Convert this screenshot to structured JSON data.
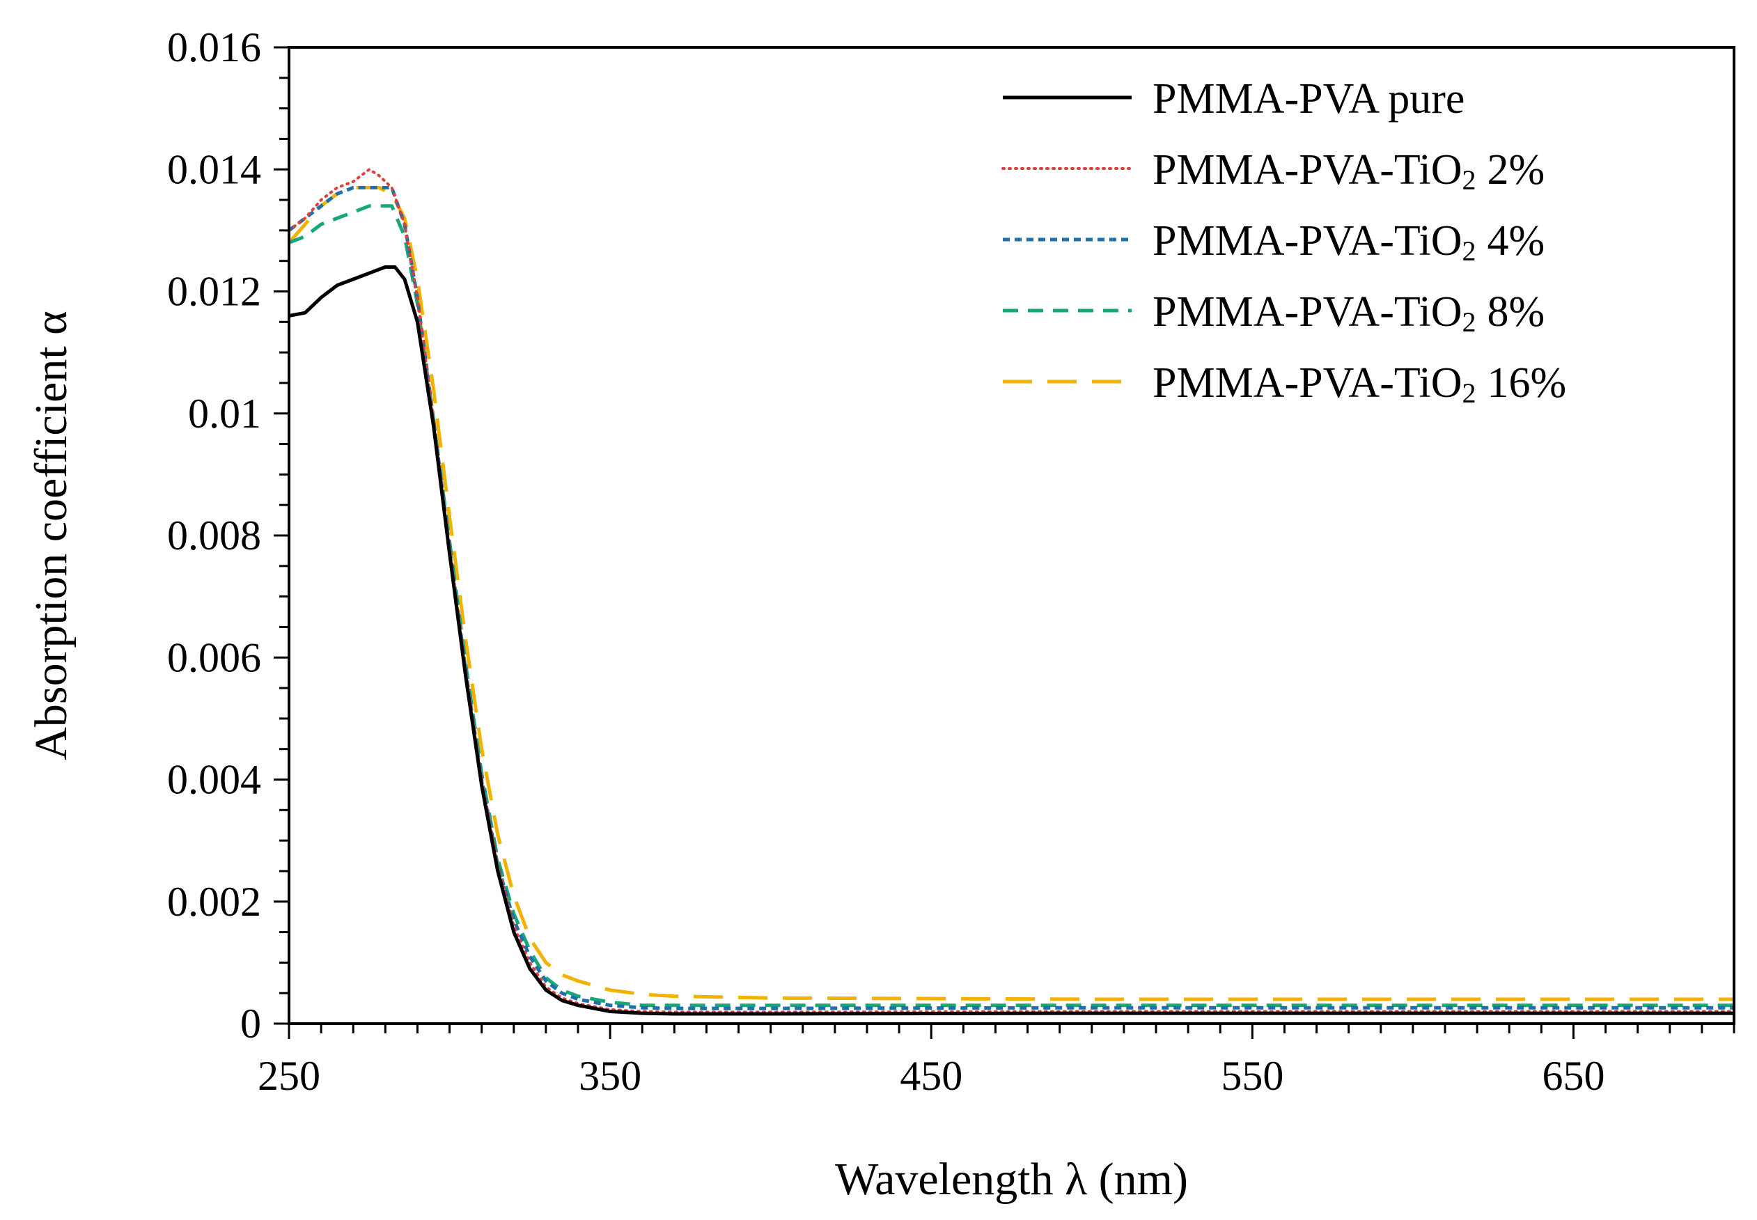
{
  "chart_data": {
    "type": "line",
    "title": "",
    "xlabel": "Wavelength λ (nm)",
    "ylabel": "Absorption coefficient α",
    "xlim": [
      250,
      700
    ],
    "ylim": [
      0,
      0.016
    ],
    "x_ticks": [
      250,
      350,
      450,
      550,
      650
    ],
    "x_tick_labels": [
      "250",
      "350",
      "450",
      "550",
      "650"
    ],
    "y_ticks": [
      0,
      0.002,
      0.004,
      0.006,
      0.008,
      0.01,
      0.012,
      0.014,
      0.016
    ],
    "y_tick_labels": [
      "0",
      "0.002",
      "0.004",
      "0.006",
      "0.008",
      "0.01",
      "0.012",
      "0.014",
      "0.016"
    ],
    "grid": false,
    "legend_position": "top-right",
    "series": [
      {
        "name": "PMMA-PVA pure",
        "legend_main": "PMMA-PVA pure",
        "legend_sub": "",
        "legend_tail": "",
        "color": "#000000",
        "dash": "solid",
        "x": [
          250,
          255,
          260,
          265,
          270,
          275,
          280,
          283,
          286,
          290,
          295,
          300,
          305,
          310,
          315,
          320,
          325,
          330,
          335,
          340,
          350,
          360,
          370,
          400,
          500,
          600,
          700
        ],
        "y": [
          0.0116,
          0.01165,
          0.0119,
          0.0121,
          0.0122,
          0.0123,
          0.0124,
          0.0124,
          0.0122,
          0.0115,
          0.0098,
          0.0077,
          0.0057,
          0.0039,
          0.0025,
          0.0015,
          0.0009,
          0.00055,
          0.00038,
          0.0003,
          0.0002,
          0.00017,
          0.00016,
          0.00016,
          0.00017,
          0.00017,
          0.00017
        ]
      },
      {
        "name": "PMMA-PVA-TiO2 2%",
        "legend_main": "PMMA-PVA-TiO",
        "legend_sub": "2",
        "legend_tail": "2%",
        "color": "#e0403c",
        "dash": "dotted",
        "x": [
          250,
          255,
          260,
          265,
          270,
          275,
          278,
          282,
          286,
          290,
          295,
          300,
          305,
          310,
          315,
          320,
          325,
          330,
          335,
          340,
          350,
          360,
          370,
          400,
          500,
          600,
          700
        ],
        "y": [
          0.013,
          0.0132,
          0.0135,
          0.0137,
          0.0138,
          0.014,
          0.0139,
          0.0137,
          0.0131,
          0.0119,
          0.0099,
          0.0078,
          0.0058,
          0.004,
          0.0026,
          0.0016,
          0.001,
          0.0006,
          0.00042,
          0.00033,
          0.00023,
          0.0002,
          0.00019,
          0.00019,
          0.0002,
          0.0002,
          0.0002
        ]
      },
      {
        "name": "PMMA-PVA-TiO2 4%",
        "legend_main": "PMMA-PVA-TiO",
        "legend_sub": "2",
        "legend_tail": "4%",
        "color": "#1f6fa8",
        "dash": "short-dash",
        "x": [
          250,
          255,
          260,
          265,
          270,
          275,
          278,
          282,
          286,
          290,
          295,
          300,
          305,
          310,
          315,
          320,
          325,
          330,
          335,
          340,
          350,
          360,
          370,
          400,
          500,
          600,
          700
        ],
        "y": [
          0.013,
          0.0132,
          0.0134,
          0.0136,
          0.0137,
          0.0137,
          0.0137,
          0.0137,
          0.0131,
          0.0119,
          0.0099,
          0.0078,
          0.0058,
          0.004,
          0.0026,
          0.0017,
          0.0011,
          0.0007,
          0.0005,
          0.0004,
          0.0003,
          0.00026,
          0.00025,
          0.00025,
          0.00026,
          0.00026,
          0.00026
        ]
      },
      {
        "name": "PMMA-PVA-TiO2 8%",
        "legend_main": "PMMA-PVA-TiO",
        "legend_sub": "2",
        "legend_tail": "8%",
        "color": "#18a878",
        "dash": "dash",
        "x": [
          250,
          255,
          260,
          265,
          270,
          275,
          278,
          282,
          286,
          290,
          295,
          300,
          305,
          310,
          315,
          320,
          325,
          330,
          335,
          340,
          350,
          360,
          370,
          400,
          500,
          600,
          700
        ],
        "y": [
          0.0128,
          0.0129,
          0.0131,
          0.0132,
          0.0133,
          0.0134,
          0.0134,
          0.0134,
          0.0129,
          0.0118,
          0.0099,
          0.0079,
          0.0059,
          0.0041,
          0.0027,
          0.0018,
          0.0012,
          0.00075,
          0.00055,
          0.00045,
          0.00035,
          0.0003,
          0.0003,
          0.0003,
          0.0003,
          0.0003,
          0.0003
        ]
      },
      {
        "name": "PMMA-PVA-TiO2 16%",
        "legend_main": "PMMA-PVA-TiO",
        "legend_sub": "2",
        "legend_tail": "16%",
        "color": "#f2b200",
        "dash": "long-dash",
        "x": [
          250,
          255,
          260,
          265,
          270,
          275,
          278,
          282,
          286,
          290,
          295,
          300,
          305,
          310,
          315,
          320,
          325,
          330,
          335,
          340,
          350,
          360,
          370,
          400,
          500,
          600,
          700
        ],
        "y": [
          0.0128,
          0.0131,
          0.0134,
          0.0136,
          0.0137,
          0.0137,
          0.0137,
          0.0136,
          0.0132,
          0.0122,
          0.0104,
          0.0083,
          0.0063,
          0.0045,
          0.0031,
          0.0021,
          0.0014,
          0.001,
          0.0008,
          0.0007,
          0.00055,
          0.00048,
          0.00045,
          0.00042,
          0.0004,
          0.0004,
          0.0004
        ]
      }
    ]
  }
}
